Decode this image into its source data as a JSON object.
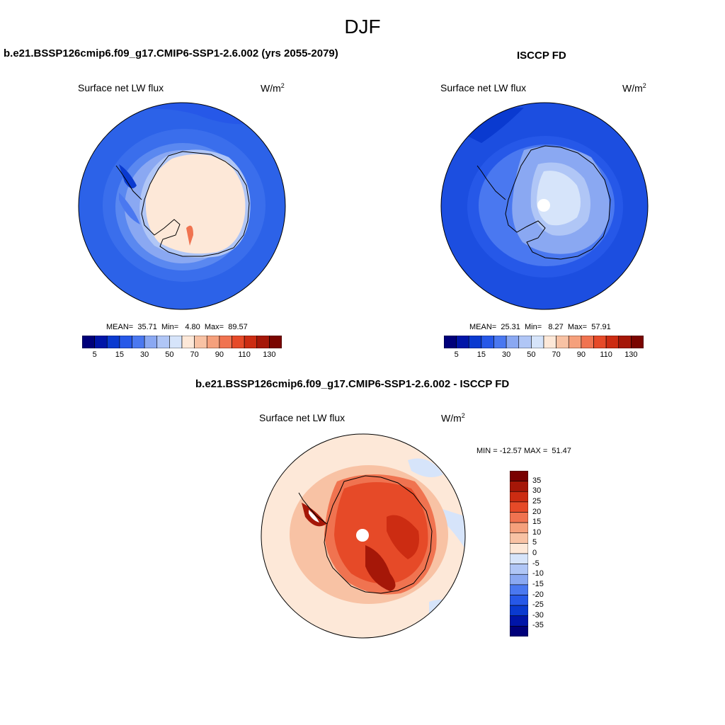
{
  "figure": {
    "title": "DJF"
  },
  "panels": [
    {
      "title": "b.e21.BSSP126cmip6.f09_g17.CMIP6-SSP1-2.6.002 (yrs 2055-2079)",
      "variable": "Surface net LW flux",
      "units_base": "W/m",
      "units_exp": "2",
      "stats": {
        "mean_label": "MEAN=",
        "mean": "35.71",
        "min_label": "Min=",
        "min": "4.80",
        "max_label": "Max=",
        "max": "89.57"
      },
      "colorbar_ticks": [
        "5",
        "15",
        "30",
        "50",
        "70",
        "90",
        "110",
        "130"
      ]
    },
    {
      "title": "ISCCP FD",
      "variable": "Surface net LW flux",
      "units_base": "W/m",
      "units_exp": "2",
      "stats": {
        "mean_label": "MEAN=",
        "mean": "25.31",
        "min_label": "Min=",
        "min": "8.27",
        "max_label": "Max=",
        "max": "57.91"
      },
      "colorbar_ticks": [
        "5",
        "15",
        "30",
        "50",
        "70",
        "90",
        "110",
        "130"
      ]
    },
    {
      "title": "b.e21.BSSP126cmip6.f09_g17.CMIP6-SSP1-2.6.002 - ISCCP FD",
      "variable": "Surface net LW flux",
      "units_base": "W/m",
      "units_exp": "2",
      "stats_text": "MIN = -12.57 MAX =  51.47",
      "colorbar_ticks": [
        "35",
        "30",
        "25",
        "20",
        "15",
        "10",
        "5",
        "0",
        "-5",
        "-10",
        "-15",
        "-20",
        "-25",
        "-30",
        "-35"
      ]
    }
  ],
  "colors": {
    "abs_scale": [
      "#00007a",
      "#0015a8",
      "#0a3ad0",
      "#2658e8",
      "#4a78f0",
      "#8aa8f2",
      "#b0c6f6",
      "#d6e4fa",
      "#fde8d8",
      "#f8c2a4",
      "#f5a07c",
      "#f07350",
      "#e64a28",
      "#cc2c12",
      "#a51708",
      "#7a0500"
    ],
    "diff_scale": [
      "#7a0000",
      "#a51708",
      "#cc2c12",
      "#e64a28",
      "#f07350",
      "#f5a07c",
      "#f8c2a4",
      "#fde8d8",
      "#d6e4fa",
      "#b0c6f6",
      "#8aa8f2",
      "#4a78f0",
      "#2658e8",
      "#0a3ad0",
      "#0015a8",
      "#00007a"
    ]
  }
}
